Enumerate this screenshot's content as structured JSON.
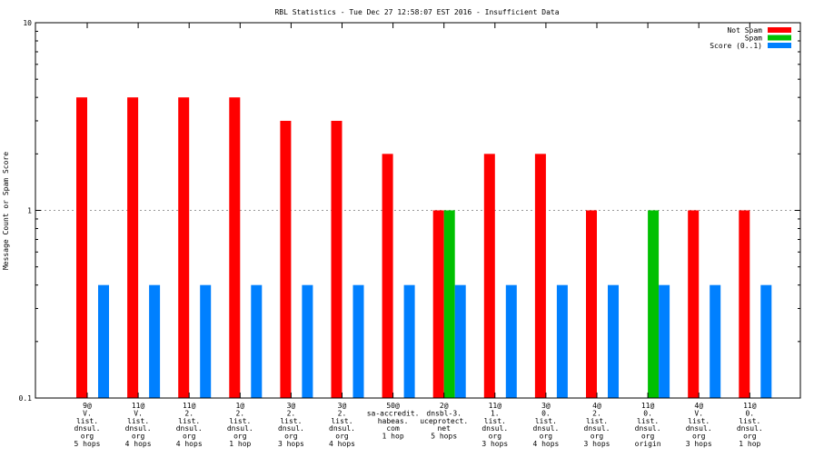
{
  "chart_data": {
    "type": "bar",
    "title": "RBL Statistics - Tue Dec 27 12:58:07 EST 2016 - Insufficient Data",
    "ylabel": "Message Count or Spam Score",
    "xlabel": "",
    "yscale": "log",
    "ylim": [
      0.1,
      10
    ],
    "yticks": [
      {
        "value": 0.1,
        "label": "0.1"
      },
      {
        "value": 1,
        "label": "1"
      },
      {
        "value": 10,
        "label": "10"
      }
    ],
    "grid": "horizontal-dotted",
    "legend_position": "top-right",
    "categories": [
      [
        "9@",
        "V.",
        "list.",
        "dnsul.",
        "org",
        "5 hops"
      ],
      [
        "11@",
        "V.",
        "list.",
        "dnsul.",
        "org",
        "4 hops"
      ],
      [
        "11@",
        "2.",
        "list.",
        "dnsul.",
        "org",
        "4 hops"
      ],
      [
        "1@",
        "2.",
        "list.",
        "dnsul.",
        "org",
        "1 hop"
      ],
      [
        "3@",
        "2.",
        "list.",
        "dnsul.",
        "org",
        "3 hops"
      ],
      [
        "3@",
        "2.",
        "list.",
        "dnsul.",
        "org",
        "4 hops"
      ],
      [
        "50@",
        "sa-accredit.",
        "habeas.",
        "com",
        "1 hop"
      ],
      [
        "2@",
        "dnsbl-3.",
        "uceprotect.",
        "net",
        "5 hops"
      ],
      [
        "11@",
        "1.",
        "list.",
        "dnsul.",
        "org",
        "3 hops"
      ],
      [
        "3@",
        "0.",
        "list.",
        "dnsul.",
        "org",
        "4 hops"
      ],
      [
        "4@",
        "2.",
        "list.",
        "dnsul.",
        "org",
        "3 hops"
      ],
      [
        "11@",
        "0.",
        "list.",
        "dnsul.",
        "org",
        "origin"
      ],
      [
        "4@",
        "V.",
        "list.",
        "dnsul.",
        "org",
        "3 hops"
      ],
      [
        "11@",
        "0.",
        "list.",
        "dnsul.",
        "org",
        "1 hop"
      ]
    ],
    "series": [
      {
        "name": "Not Spam",
        "color": "#ff0000",
        "values": [
          4,
          4,
          4,
          4,
          3,
          3,
          2,
          1,
          2,
          2,
          1,
          null,
          1,
          1
        ]
      },
      {
        "name": "Spam",
        "color": "#00c000",
        "values": [
          null,
          null,
          null,
          null,
          null,
          null,
          null,
          1,
          null,
          null,
          null,
          1,
          null,
          null
        ]
      },
      {
        "name": "Score (0..1)",
        "color": "#0080ff",
        "values": [
          0.4,
          0.4,
          0.4,
          0.4,
          0.4,
          0.4,
          0.4,
          0.4,
          0.4,
          0.4,
          0.4,
          0.4,
          0.4,
          0.4
        ]
      }
    ]
  }
}
